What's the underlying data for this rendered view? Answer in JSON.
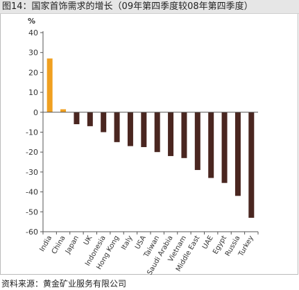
{
  "header": {
    "title": "图14：国家首饰需求的增长（09年第四季度较08年第四季度）"
  },
  "footer": {
    "source": "资料来源：黄金矿业服务有限公司"
  },
  "chart_data": {
    "type": "bar",
    "title": "",
    "xlabel": "",
    "ylabel": "%",
    "ylim": [
      -60,
      40
    ],
    "yticks": [
      40,
      30,
      20,
      10,
      0,
      -10,
      -20,
      -30,
      -40,
      -50,
      -60
    ],
    "grid": false,
    "categories": [
      "India",
      "China",
      "Japan",
      "UK",
      "Indonesia",
      "Hong Kong",
      "Italy",
      "USA",
      "Taiwan",
      "Saudi Arabia",
      "Vietnam",
      "Middle East",
      "UAE",
      "Egypt",
      "Russia",
      "Turkey"
    ],
    "values": [
      27,
      1.5,
      -6,
      -7,
      -10,
      -15,
      -17,
      -17.5,
      -20,
      -22,
      -23,
      -29,
      -33,
      -35.5,
      -42,
      -53
    ],
    "colors": {
      "positive": "#f0a020",
      "negative": "#4a2620",
      "axis": "#555555"
    }
  }
}
